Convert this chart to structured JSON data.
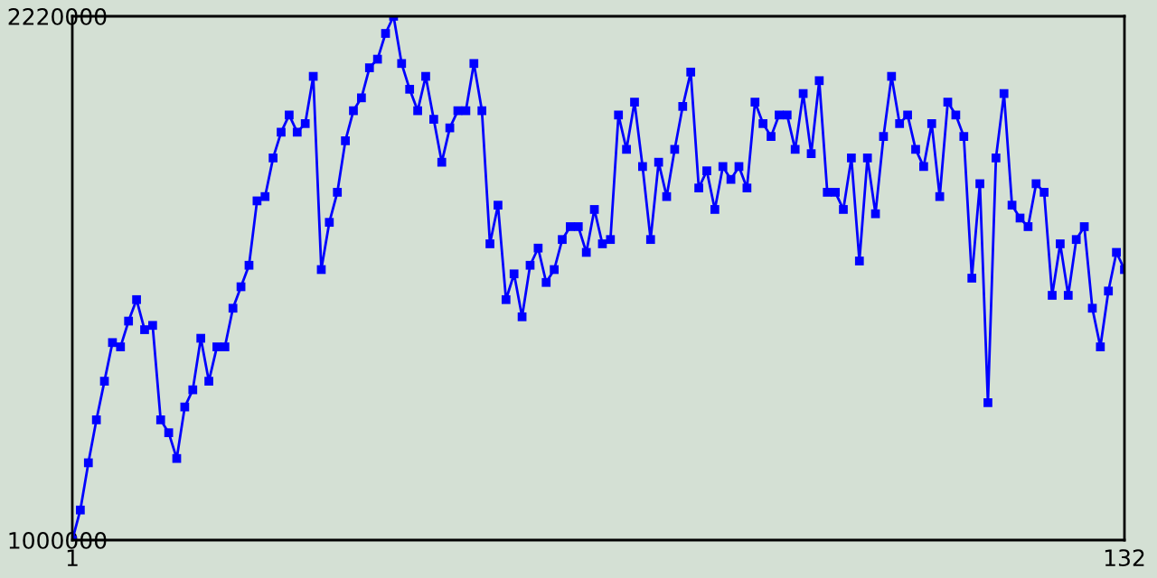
{
  "chart_data": {
    "type": "line",
    "x": [
      1,
      2,
      3,
      4,
      5,
      6,
      7,
      8,
      9,
      10,
      11,
      12,
      13,
      14,
      15,
      16,
      17,
      18,
      19,
      20,
      21,
      22,
      23,
      24,
      25,
      26,
      27,
      28,
      29,
      30,
      31,
      32,
      33,
      34,
      35,
      36,
      37,
      38,
      39,
      40,
      41,
      42,
      43,
      44,
      45,
      46,
      47,
      48,
      49,
      50,
      51,
      52,
      53,
      54,
      55,
      56,
      57,
      58,
      59,
      60,
      61,
      62,
      63,
      64,
      65,
      66,
      67,
      68,
      69,
      70,
      71,
      72,
      73,
      74,
      75,
      76,
      77,
      78,
      79,
      80,
      81,
      82,
      83,
      84,
      85,
      86,
      87,
      88,
      89,
      90,
      91,
      92,
      93,
      94,
      95,
      96,
      97,
      98,
      99,
      100,
      101,
      102,
      103,
      104,
      105,
      106,
      107,
      108,
      109,
      110,
      111,
      112,
      113,
      114,
      115,
      116,
      117,
      118,
      119,
      120,
      121,
      122,
      123,
      124,
      125,
      126,
      127,
      128,
      129,
      130,
      131,
      132
    ],
    "series": [
      {
        "color": "#0000ff",
        "values": [
          1000000,
          1070000,
          1180000,
          1280000,
          1370000,
          1460000,
          1450000,
          1510000,
          1560000,
          1490000,
          1500000,
          1280000,
          1250000,
          1190000,
          1310000,
          1350000,
          1470000,
          1370000,
          1450000,
          1450000,
          1540000,
          1590000,
          1640000,
          1790000,
          1800000,
          1890000,
          1950000,
          1990000,
          1950000,
          1970000,
          2080000,
          1630000,
          1740000,
          1810000,
          1930000,
          2000000,
          2030000,
          2100000,
          2120000,
          2180000,
          2220000,
          2110000,
          2050000,
          2000000,
          2080000,
          1980000,
          1880000,
          1960000,
          2000000,
          2000000,
          2110000,
          2000000,
          1690000,
          1780000,
          1560000,
          1620000,
          1520000,
          1640000,
          1680000,
          1600000,
          1630000,
          1700000,
          1730000,
          1730000,
          1670000,
          1770000,
          1690000,
          1700000,
          1990000,
          1910000,
          2020000,
          1870000,
          1700000,
          1880000,
          1800000,
          1910000,
          2010000,
          2090000,
          1820000,
          1860000,
          1770000,
          1870000,
          1840000,
          1870000,
          1820000,
          2020000,
          1970000,
          1940000,
          1990000,
          1990000,
          1910000,
          2040000,
          1900000,
          2070000,
          1810000,
          1810000,
          1770000,
          1890000,
          1650000,
          1890000,
          1760000,
          1940000,
          2080000,
          1970000,
          1990000,
          1910000,
          1870000,
          1970000,
          1800000,
          2020000,
          1990000,
          1940000,
          1610000,
          1830000,
          1320000,
          1890000,
          2040000,
          1780000,
          1750000,
          1730000,
          1830000,
          1810000,
          1570000,
          1690000,
          1570000,
          1700000,
          1730000,
          1540000,
          1450000,
          1580000,
          1670000,
          1630000
        ]
      }
    ],
    "xlim": [
      1,
      132
    ],
    "xticks": [
      1,
      132
    ],
    "ylim": [
      1000000,
      2220000
    ],
    "yticks": [
      1000000,
      2220000
    ],
    "marker": "square",
    "line_style": "solid"
  }
}
